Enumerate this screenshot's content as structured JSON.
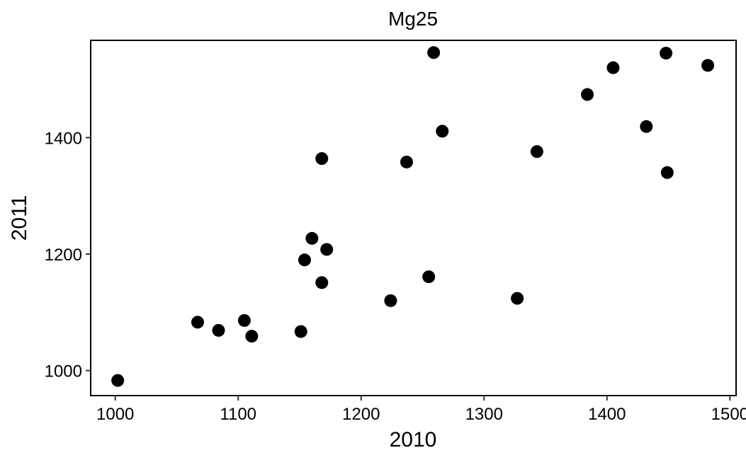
{
  "chart_data": {
    "type": "scatter",
    "title": "Mg25",
    "xlabel": "2010",
    "ylabel": "2011",
    "xlim": [
      980,
      1505
    ],
    "ylim": [
      957,
      1567
    ],
    "xticks": [
      1000,
      1100,
      1200,
      1300,
      1400,
      1500
    ],
    "xtick_labels": [
      "1000",
      "1100",
      "1200",
      "1300",
      "1400",
      "1500"
    ],
    "yticks": [
      1000,
      1200,
      1400
    ],
    "ytick_labels": [
      "1000",
      "1200",
      "1400"
    ],
    "grid": false,
    "legend": "none",
    "marker_color": "#000000",
    "points": [
      {
        "x": 1002,
        "y": 983
      },
      {
        "x": 1067,
        "y": 1083
      },
      {
        "x": 1084,
        "y": 1069
      },
      {
        "x": 1105,
        "y": 1086
      },
      {
        "x": 1111,
        "y": 1059
      },
      {
        "x": 1151,
        "y": 1067
      },
      {
        "x": 1154,
        "y": 1190
      },
      {
        "x": 1160,
        "y": 1227
      },
      {
        "x": 1168,
        "y": 1151
      },
      {
        "x": 1168,
        "y": 1364
      },
      {
        "x": 1172,
        "y": 1208
      },
      {
        "x": 1224,
        "y": 1120
      },
      {
        "x": 1237,
        "y": 1358
      },
      {
        "x": 1255,
        "y": 1161
      },
      {
        "x": 1259,
        "y": 1546
      },
      {
        "x": 1266,
        "y": 1411
      },
      {
        "x": 1327,
        "y": 1124
      },
      {
        "x": 1343,
        "y": 1376
      },
      {
        "x": 1384,
        "y": 1474
      },
      {
        "x": 1405,
        "y": 1520
      },
      {
        "x": 1432,
        "y": 1419
      },
      {
        "x": 1448,
        "y": 1545
      },
      {
        "x": 1449,
        "y": 1340
      },
      {
        "x": 1482,
        "y": 1524
      }
    ]
  }
}
